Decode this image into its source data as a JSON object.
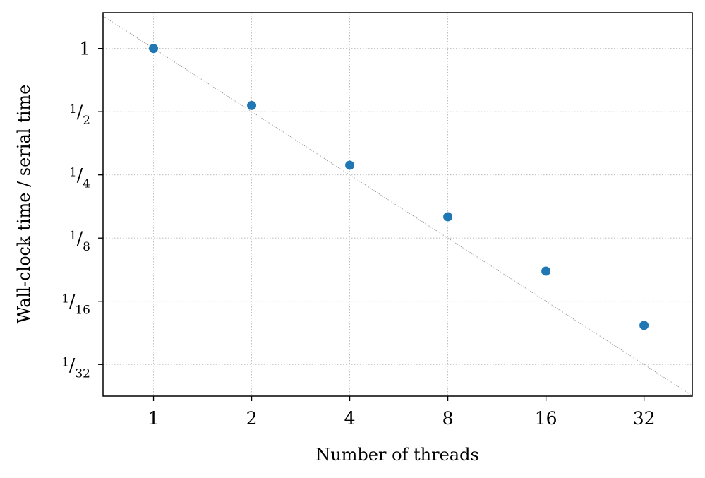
{
  "chart_data": {
    "type": "scatter",
    "title": "",
    "xlabel": "Number of threads",
    "ylabel": "Wall-clock time / serial time",
    "x_scale": "log2",
    "y_scale": "log2",
    "xlim": [
      0.7,
      45
    ],
    "ylim": [
      0.0221,
      1.48
    ],
    "grid": true,
    "x_ticks": [
      {
        "value": 1,
        "label": "1"
      },
      {
        "value": 2,
        "label": "2"
      },
      {
        "value": 4,
        "label": "4"
      },
      {
        "value": 8,
        "label": "8"
      },
      {
        "value": 16,
        "label": "16"
      },
      {
        "value": 32,
        "label": "32"
      }
    ],
    "y_ticks": [
      {
        "value": 1,
        "num": "1",
        "den": ""
      },
      {
        "value": 0.5,
        "num": "1",
        "den": "2"
      },
      {
        "value": 0.25,
        "num": "1",
        "den": "4"
      },
      {
        "value": 0.125,
        "num": "1",
        "den": "8"
      },
      {
        "value": 0.0625,
        "num": "1",
        "den": "16"
      },
      {
        "value": 0.03125,
        "num": "1",
        "den": "32"
      }
    ],
    "x": [
      1,
      2,
      4,
      8,
      16,
      32
    ],
    "y": [
      1.0,
      0.535,
      0.278,
      0.158,
      0.087,
      0.048
    ],
    "reference_line": {
      "description": "ideal scaling",
      "style": "dotted",
      "color": "#888888"
    },
    "point_color": "#1f77b4"
  }
}
